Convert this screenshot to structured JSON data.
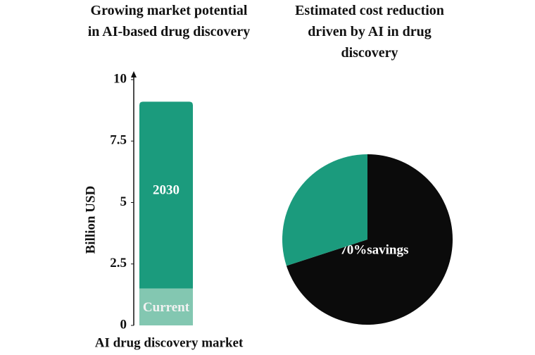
{
  "chart_data": [
    {
      "type": "bar",
      "title": "Growing market potential in AI-based drug discovery",
      "xlabel": "AI drug discovery market",
      "ylabel": "Billion USD",
      "stacked": true,
      "series": [
        {
          "name": "Current",
          "color": "#83c7b1",
          "values": [
            1.5
          ]
        },
        {
          "name": "2030",
          "color": "#1b9b7d",
          "values": [
            7.6
          ]
        }
      ],
      "ylim": [
        0,
        10
      ],
      "yticks": [
        0,
        2.5,
        5,
        7.5,
        10
      ]
    },
    {
      "type": "pie",
      "title": "Estimated cost reduction driven by AI in drug discovery",
      "values": [
        70,
        30
      ],
      "colors": [
        "#0b0b0b",
        "#1b9b7d"
      ],
      "value_labels": [
        "70%savings",
        null
      ]
    }
  ]
}
